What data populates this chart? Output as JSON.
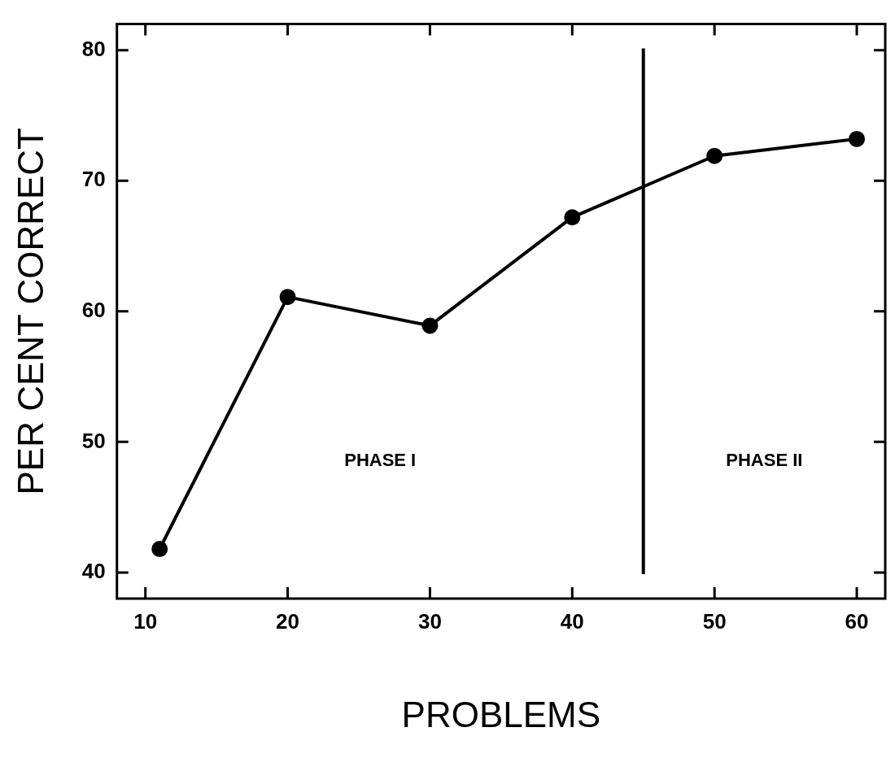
{
  "chart_data": {
    "type": "line",
    "xlabel": "PROBLEMS",
    "ylabel": "PER CENT CORRECT",
    "x": [
      11,
      20,
      30,
      40,
      50,
      60
    ],
    "series": [
      {
        "color": "#000000",
        "values": [
          41.8,
          61.1,
          58.9,
          67.2,
          71.9,
          73.2
        ]
      }
    ],
    "xlim": [
      8,
      62
    ],
    "xticks": [
      10,
      20,
      30,
      40,
      50,
      60
    ],
    "ylim": [
      38,
      82
    ],
    "yticks": [
      40,
      50,
      60,
      70,
      80
    ],
    "ref_lines": [
      {
        "axis": "x",
        "value": 45,
        "color": "#000000"
      }
    ],
    "annotations": [
      "PHASE I",
      "PHASE II"
    ],
    "grid": false,
    "legend": false,
    "marker": "circle",
    "line_style": "solid"
  }
}
